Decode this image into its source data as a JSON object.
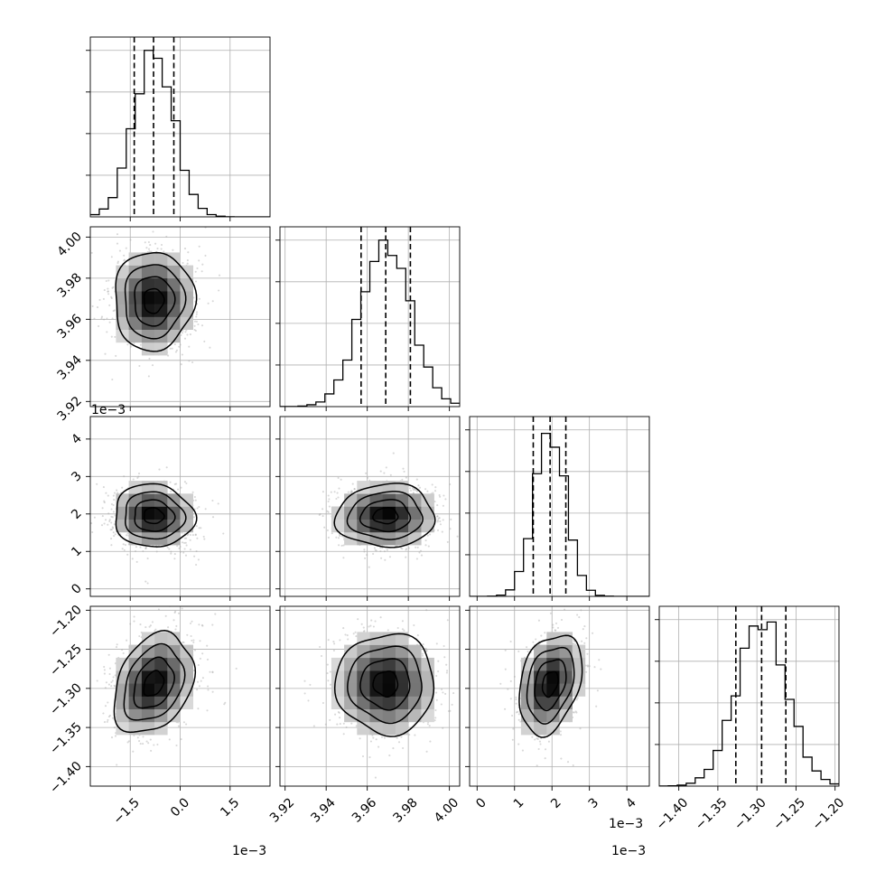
{
  "chart_data": {
    "type": "corner",
    "parameters": [
      {
        "name": "",
        "range": [
          -2.7,
          2.7
        ],
        "ticks": [
          -1.5,
          0.0,
          1.5
        ],
        "tick_labels": [
          "−1.5",
          "0.0",
          "1.5"
        ],
        "offset_label": "1e−3",
        "mean": -0.8,
        "std": 0.6,
        "quantiles": [
          -1.38,
          -0.8,
          -0.19
        ]
      },
      {
        "name": "",
        "range": [
          3.9175,
          4.005
        ],
        "ticks": [
          3.92,
          3.94,
          3.96,
          3.98,
          4.0
        ],
        "tick_labels": [
          "3.92",
          "3.94",
          "3.96",
          "3.98",
          "4.00"
        ],
        "offset_label": "",
        "mean": 3.969,
        "std": 0.012,
        "quantiles": [
          3.957,
          3.969,
          3.981
        ]
      },
      {
        "name": "",
        "range": [
          -0.2,
          4.6
        ],
        "ticks": [
          0,
          1,
          2,
          3,
          4
        ],
        "tick_labels": [
          "0",
          "1",
          "2",
          "3",
          "4"
        ],
        "offset_label": "1e−3",
        "mean": 1.95,
        "std": 0.42,
        "quantiles": [
          1.5,
          1.95,
          2.37
        ]
      },
      {
        "name": "",
        "range": [
          -1.425,
          -1.195
        ],
        "ticks": [
          -1.4,
          -1.35,
          -1.3,
          -1.25,
          -1.2
        ],
        "tick_labels": [
          "−1.40",
          "−1.35",
          "−1.30",
          "−1.25",
          "−1.20"
        ],
        "offset_label": "",
        "mean": -1.294,
        "std": 0.032,
        "quantiles": [
          -1.327,
          -1.294,
          -1.263
        ]
      }
    ],
    "correlations": {
      "1-0": 0.02,
      "2-0": -0.05,
      "2-1": 0.03,
      "3-0": 0.3,
      "3-1": 0.0,
      "3-2": 0.3
    },
    "grid": true,
    "contour_levels": [
      0.5,
      1.0,
      1.5,
      2.0
    ]
  }
}
